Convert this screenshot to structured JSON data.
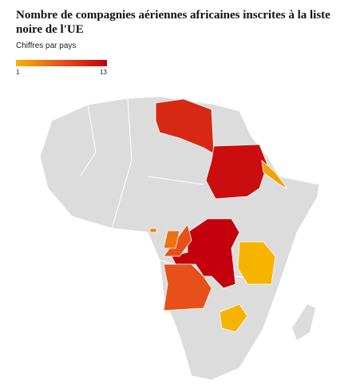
{
  "chart_data": {
    "type": "choropleth",
    "title": "Nombre de compagnies aériennes africaines inscrites à la liste noire de l'UE",
    "subtitle": "Chiffres par pays",
    "scale": [
      1,
      13
    ],
    "colors": [
      "#f6b400",
      "#e8501a",
      "#c4000c"
    ],
    "values": [
      10,
      12,
      2,
      13,
      7,
      5,
      4,
      7,
      1,
      1
    ]
  }
}
